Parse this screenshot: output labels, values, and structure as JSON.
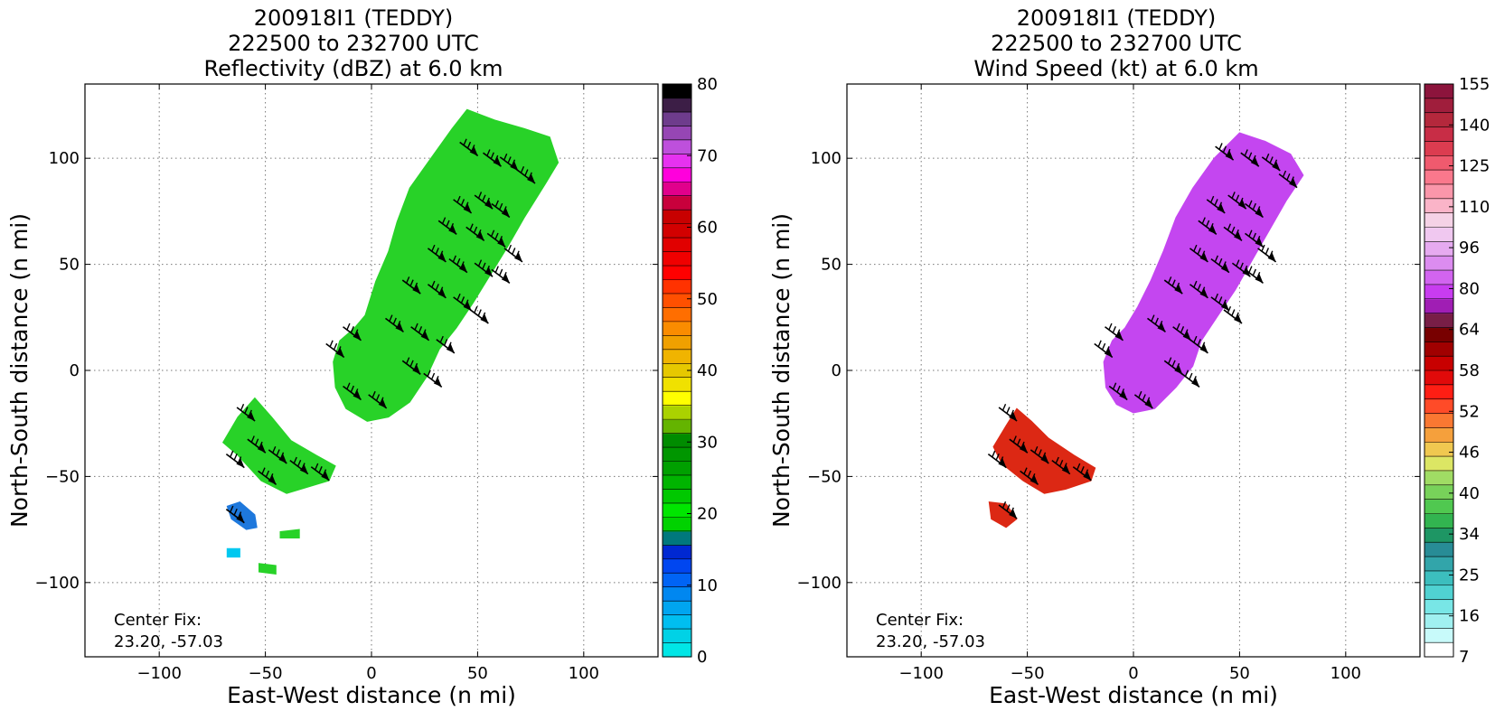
{
  "chart_data": [
    {
      "type": "heatmap",
      "title_lines": [
        "200918I1 (TEDDY)",
        "222500 to 232700 UTC",
        "Reflectivity (dBZ) at 6.0 km"
      ],
      "xlabel": "East-West distance (n mi)",
      "ylabel": "North-South distance (n mi)",
      "xlim": [
        -135,
        135
      ],
      "ylim": [
        -135,
        135
      ],
      "xticks": [
        -100,
        -50,
        0,
        50,
        100
      ],
      "yticks": [
        -100,
        -50,
        0,
        50,
        100
      ],
      "xtick_labels": [
        "−100",
        "−50",
        "0",
        "50",
        "100"
      ],
      "ytick_labels": [
        "−100",
        "−50",
        "0",
        "50",
        "100"
      ],
      "grid": true,
      "center_fix_label": "Center Fix:",
      "center_fix_value": "23.20, -57.03",
      "colorbar": {
        "label_values": [
          "0",
          "10",
          "20",
          "30",
          "40",
          "50",
          "60",
          "70",
          "80"
        ],
        "colors": [
          "#00e6e6",
          "#00d2e6",
          "#00bef0",
          "#00a5f0",
          "#0087f0",
          "#0064f5",
          "#0046f0",
          "#0028d2",
          "#00787d",
          "#00d200",
          "#00e600",
          "#00c800",
          "#00b400",
          "#00a000",
          "#009600",
          "#008c00",
          "#64b400",
          "#aad200",
          "#ffff00",
          "#f0e100",
          "#e6c800",
          "#f0b400",
          "#f0a000",
          "#fa8c00",
          "#ff6e00",
          "#ff5000",
          "#ff3200",
          "#ff0000",
          "#f00000",
          "#e10000",
          "#d20000",
          "#c80000",
          "#c8003c",
          "#e1008c",
          "#ff00dc",
          "#e632f0",
          "#be50dc",
          "#9646b4",
          "#6e3c8c",
          "#3c1e46",
          "#000000"
        ]
      },
      "regions": [
        {
          "name": "main-rainband",
          "fill": "#28d228",
          "points": [
            [
              45,
              123
            ],
            [
              58,
              118
            ],
            [
              72,
              114
            ],
            [
              84,
              110
            ],
            [
              88,
              98
            ],
            [
              82,
              88
            ],
            [
              72,
              72
            ],
            [
              64,
              58
            ],
            [
              56,
              45
            ],
            [
              48,
              32
            ],
            [
              40,
              20
            ],
            [
              32,
              10
            ],
            [
              26,
              -3
            ],
            [
              18,
              -15
            ],
            [
              8,
              -22
            ],
            [
              -2,
              -24
            ],
            [
              -12,
              -18
            ],
            [
              -17,
              -8
            ],
            [
              -18,
              4
            ],
            [
              -15,
              14
            ],
            [
              -8,
              20
            ],
            [
              -3,
              26
            ],
            [
              2,
              42
            ],
            [
              8,
              56
            ],
            [
              12,
              70
            ],
            [
              18,
              86
            ],
            [
              28,
              100
            ],
            [
              38,
              114
            ]
          ]
        },
        {
          "name": "sw-band",
          "fill": "#28d228",
          "points": [
            [
              -55,
              -13
            ],
            [
              -47,
              -22
            ],
            [
              -38,
              -33
            ],
            [
              -26,
              -40
            ],
            [
              -17,
              -45
            ],
            [
              -20,
              -52
            ],
            [
              -30,
              -55
            ],
            [
              -40,
              -58
            ],
            [
              -52,
              -52
            ],
            [
              -63,
              -40
            ],
            [
              -70,
              -34
            ],
            [
              -63,
              -22
            ]
          ]
        },
        {
          "name": "small-blob-1",
          "fill": "#1e78dc",
          "points": [
            [
              -68,
              -64
            ],
            [
              -62,
              -62
            ],
            [
              -55,
              -68
            ],
            [
              -54,
              -74
            ],
            [
              -59,
              -75
            ],
            [
              -66,
              -70
            ]
          ]
        },
        {
          "name": "small-blob-2",
          "fill": "#28d228",
          "points": [
            [
              -43,
              -76
            ],
            [
              -34,
              -75
            ],
            [
              -34,
              -79
            ],
            [
              -43,
              -79
            ]
          ]
        },
        {
          "name": "small-blob-3",
          "fill": "#00c8f0",
          "points": [
            [
              -68,
              -84
            ],
            [
              -62,
              -84
            ],
            [
              -62,
              -88
            ],
            [
              -68,
              -88
            ]
          ]
        },
        {
          "name": "small-blob-4",
          "fill": "#28d228",
          "points": [
            [
              -53,
              -91
            ],
            [
              -45,
              -92
            ],
            [
              -45,
              -96
            ],
            [
              -53,
              -95
            ]
          ]
        }
      ],
      "wind_barbs": [
        [
          45,
          105
        ],
        [
          56,
          100
        ],
        [
          64,
          98
        ],
        [
          72,
          92
        ],
        [
          42,
          78
        ],
        [
          52,
          80
        ],
        [
          60,
          76
        ],
        [
          35,
          68
        ],
        [
          48,
          65
        ],
        [
          58,
          62
        ],
        [
          66,
          55
        ],
        [
          30,
          55
        ],
        [
          40,
          50
        ],
        [
          52,
          48
        ],
        [
          60,
          45
        ],
        [
          18,
          40
        ],
        [
          30,
          38
        ],
        [
          42,
          32
        ],
        [
          50,
          26
        ],
        [
          10,
          22
        ],
        [
          22,
          18
        ],
        [
          34,
          12
        ],
        [
          -10,
          18
        ],
        [
          -18,
          10
        ],
        [
          18,
          2
        ],
        [
          28,
          -4
        ],
        [
          -10,
          -10
        ],
        [
          2,
          -14
        ],
        [
          -60,
          -20
        ],
        [
          -55,
          -35
        ],
        [
          -45,
          -40
        ],
        [
          -35,
          -45
        ],
        [
          -25,
          -48
        ],
        [
          -65,
          -42
        ],
        [
          -50,
          -50
        ],
        [
          -65,
          -68
        ]
      ]
    },
    {
      "type": "heatmap",
      "title_lines": [
        "200918I1 (TEDDY)",
        "222500 to 232700 UTC",
        "Wind Speed (kt) at 6.0 km"
      ],
      "xlabel": "East-West distance (n mi)",
      "ylabel": "North-South distance (n mi)",
      "xlim": [
        -135,
        135
      ],
      "ylim": [
        -135,
        135
      ],
      "xticks": [
        -100,
        -50,
        0,
        50,
        100
      ],
      "yticks": [
        -100,
        -50,
        0,
        50,
        100
      ],
      "xtick_labels": [
        "−100",
        "−50",
        "0",
        "50",
        "100"
      ],
      "ytick_labels": [
        "−100",
        "−50",
        "0",
        "50",
        "100"
      ],
      "grid": true,
      "center_fix_label": "Center Fix:",
      "center_fix_value": "23.20, -57.03",
      "colorbar": {
        "label_values": [
          "7",
          "16",
          "25",
          "34",
          "40",
          "46",
          "52",
          "58",
          "64",
          "80",
          "96",
          "110",
          "125",
          "140",
          "155"
        ],
        "colors": [
          "#ffffff",
          "#c8fafa",
          "#a0f0f0",
          "#78e6e6",
          "#50d2d2",
          "#3cbebe",
          "#32a5aa",
          "#288c96",
          "#1e9664",
          "#32b450",
          "#50c850",
          "#78d25a",
          "#a0dc64",
          "#dce664",
          "#f0c850",
          "#f5a03c",
          "#fa7832",
          "#ff4b28",
          "#ff1e14",
          "#e10a0a",
          "#c80000",
          "#a00000",
          "#780000",
          "#781e46",
          "#a01eb4",
          "#c83cf0",
          "#d264f0",
          "#dc8cf0",
          "#e6aaf0",
          "#f0c8f0",
          "#f5d2e6",
          "#fab4c8",
          "#fa96aa",
          "#fa788c",
          "#f05a6e",
          "#dc3c50",
          "#c82d46",
          "#b4283c",
          "#a01e3c",
          "#8c143c"
        ]
      },
      "regions": [
        {
          "name": "main-wind-band",
          "fill": "#c446f0",
          "points": [
            [
              50,
              112
            ],
            [
              62,
              108
            ],
            [
              74,
              102
            ],
            [
              80,
              92
            ],
            [
              72,
              80
            ],
            [
              64,
              66
            ],
            [
              56,
              52
            ],
            [
              48,
              38
            ],
            [
              40,
              26
            ],
            [
              32,
              14
            ],
            [
              28,
              2
            ],
            [
              20,
              -8
            ],
            [
              10,
              -18
            ],
            [
              0,
              -20
            ],
            [
              -8,
              -16
            ],
            [
              -13,
              -8
            ],
            [
              -14,
              4
            ],
            [
              -10,
              14
            ],
            [
              -4,
              20
            ],
            [
              2,
              30
            ],
            [
              8,
              42
            ],
            [
              14,
              56
            ],
            [
              20,
              72
            ],
            [
              28,
              86
            ],
            [
              38,
              100
            ]
          ]
        },
        {
          "name": "sw-wind-band",
          "fill": "#dc2814",
          "points": [
            [
              -55,
              -18
            ],
            [
              -48,
              -24
            ],
            [
              -40,
              -32
            ],
            [
              -28,
              -40
            ],
            [
              -18,
              -46
            ],
            [
              -20,
              -52
            ],
            [
              -32,
              -56
            ],
            [
              -42,
              -58
            ],
            [
              -52,
              -52
            ],
            [
              -62,
              -44
            ],
            [
              -66,
              -36
            ],
            [
              -60,
              -26
            ]
          ]
        },
        {
          "name": "small-wind-blob",
          "fill": "#dc2814",
          "points": [
            [
              -68,
              -62
            ],
            [
              -60,
              -63
            ],
            [
              -55,
              -70
            ],
            [
              -60,
              -74
            ],
            [
              -67,
              -70
            ]
          ]
        }
      ],
      "wind_barbs": [
        [
          42,
          103
        ],
        [
          54,
          100
        ],
        [
          64,
          98
        ],
        [
          72,
          90
        ],
        [
          38,
          78
        ],
        [
          48,
          80
        ],
        [
          56,
          76
        ],
        [
          34,
          68
        ],
        [
          46,
          65
        ],
        [
          56,
          62
        ],
        [
          62,
          55
        ],
        [
          30,
          55
        ],
        [
          40,
          50
        ],
        [
          50,
          48
        ],
        [
          56,
          45
        ],
        [
          18,
          40
        ],
        [
          30,
          38
        ],
        [
          40,
          32
        ],
        [
          46,
          26
        ],
        [
          10,
          22
        ],
        [
          22,
          18
        ],
        [
          30,
          12
        ],
        [
          -10,
          18
        ],
        [
          -15,
          10
        ],
        [
          18,
          2
        ],
        [
          26,
          -4
        ],
        [
          -8,
          -10
        ],
        [
          4,
          -14
        ],
        [
          -60,
          -20
        ],
        [
          -55,
          -35
        ],
        [
          -45,
          -40
        ],
        [
          -35,
          -45
        ],
        [
          -25,
          -48
        ],
        [
          -65,
          -42
        ],
        [
          -50,
          -50
        ],
        [
          -60,
          -66
        ]
      ]
    }
  ]
}
